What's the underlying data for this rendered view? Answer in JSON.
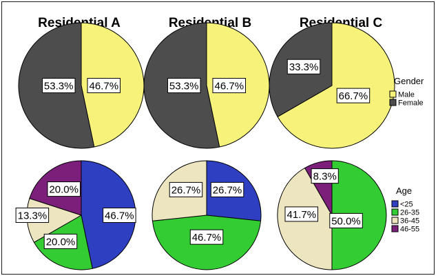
{
  "chart_data": [
    {
      "type": "pie",
      "title": "Residential A",
      "variable": "Gender",
      "slices": [
        {
          "label": "Male",
          "value": 46.7,
          "display": "46.7%",
          "color": "#f6f27a"
        },
        {
          "label": "Female",
          "value": 53.3,
          "display": "53.3%",
          "color": "#4d4d4d"
        }
      ]
    },
    {
      "type": "pie",
      "title": "Residential B",
      "variable": "Gender",
      "slices": [
        {
          "label": "Male",
          "value": 46.7,
          "display": "46.7%",
          "color": "#f6f27a"
        },
        {
          "label": "Female",
          "value": 53.3,
          "display": "53.3%",
          "color": "#4d4d4d"
        }
      ]
    },
    {
      "type": "pie",
      "title": "Residential C",
      "variable": "Gender",
      "slices": [
        {
          "label": "Male",
          "value": 66.7,
          "display": "66.7%",
          "color": "#f6f27a"
        },
        {
          "label": "Female",
          "value": 33.3,
          "display": "33.3%",
          "color": "#4d4d4d"
        }
      ]
    },
    {
      "type": "pie",
      "title": "",
      "variable": "Age",
      "slices": [
        {
          "label": "<25",
          "value": 46.7,
          "display": "46.7%",
          "color": "#2e3fc2"
        },
        {
          "label": "26-35",
          "value": 20.0,
          "display": "20.0%",
          "color": "#33cc33"
        },
        {
          "label": "36-45",
          "value": 13.3,
          "display": "13.3%",
          "color": "#ece5c0"
        },
        {
          "label": "46-55",
          "value": 20.0,
          "display": "20.0%",
          "color": "#7b1f7a"
        }
      ]
    },
    {
      "type": "pie",
      "title": "",
      "variable": "Age",
      "slices": [
        {
          "label": "<25",
          "value": 26.7,
          "display": "26.7%",
          "color": "#2e3fc2"
        },
        {
          "label": "26-35",
          "value": 46.7,
          "display": "46.7%",
          "color": "#33cc33"
        },
        {
          "label": "36-45",
          "value": 26.7,
          "display": "26.7%",
          "color": "#ece5c0"
        },
        {
          "label": "46-55",
          "value": 0,
          "display": "",
          "color": "#7b1f7a"
        }
      ]
    },
    {
      "type": "pie",
      "title": "",
      "variable": "Age",
      "slices": [
        {
          "label": "<25",
          "value": 0,
          "display": "",
          "color": "#2e3fc2"
        },
        {
          "label": "26-35",
          "value": 50.0,
          "display": "50.0%",
          "color": "#33cc33"
        },
        {
          "label": "36-45",
          "value": 41.7,
          "display": "41.7%",
          "color": "#ece5c0"
        },
        {
          "label": "46-55",
          "value": 8.3,
          "display": "8.3%",
          "color": "#7b1f7a"
        }
      ]
    }
  ],
  "legends": [
    {
      "title": "Gender",
      "items": [
        {
          "label": "Male",
          "color": "#f6f27a"
        },
        {
          "label": "Female",
          "color": "#4d4d4d"
        }
      ]
    },
    {
      "title": "Age",
      "items": [
        {
          "label": "<25",
          "color": "#2e3fc2"
        },
        {
          "label": "26-35",
          "color": "#33cc33"
        },
        {
          "label": "36-45",
          "color": "#ece5c0"
        },
        {
          "label": "46-55",
          "color": "#7b1f7a"
        }
      ]
    }
  ]
}
